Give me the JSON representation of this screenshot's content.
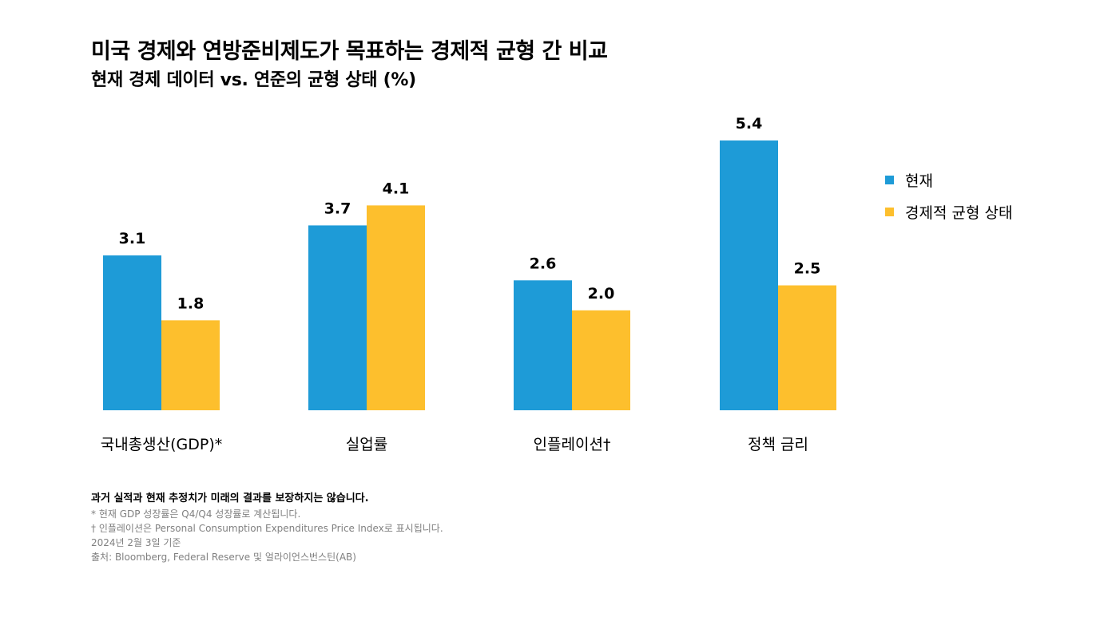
{
  "chart_data": {
    "type": "bar",
    "title": "미국 경제와 연방준비제도가 목표하는 경제적 균형 간 비교",
    "subtitle": "현재 경제 데이터 vs. 연준의 균형 상태 (%)",
    "categories": [
      "국내총생산(GDP)*",
      "실업률",
      "인플레이션†",
      "정책 금리"
    ],
    "series": [
      {
        "name": "현재",
        "values": [
          3.1,
          3.7,
          2.6,
          5.4
        ],
        "color": "#1E9BD7"
      },
      {
        "name": "경제적 균형 상태",
        "values": [
          1.8,
          4.1,
          2.0,
          2.5
        ],
        "color": "#FDBF2D"
      }
    ],
    "ylim": [
      0,
      5.4
    ],
    "grid": false,
    "legend_position": "right"
  },
  "notes": {
    "disclaimer": "과거 실적과 현재 추정치가 미래의 결과를 보장하지는 않습니다.",
    "gdp_note": "* 현재 GDP 성장률은 Q4/Q4 성장률로 계산됩니다.",
    "inflation_note": "† 인플레이션은 Personal Consumption Expenditures Price Index로 표시됩니다.",
    "as_of": "2024년 2월 3일 기준",
    "source": "출처: Bloomberg, Federal Reserve 및 얼라이언스번스틴(AB)"
  }
}
